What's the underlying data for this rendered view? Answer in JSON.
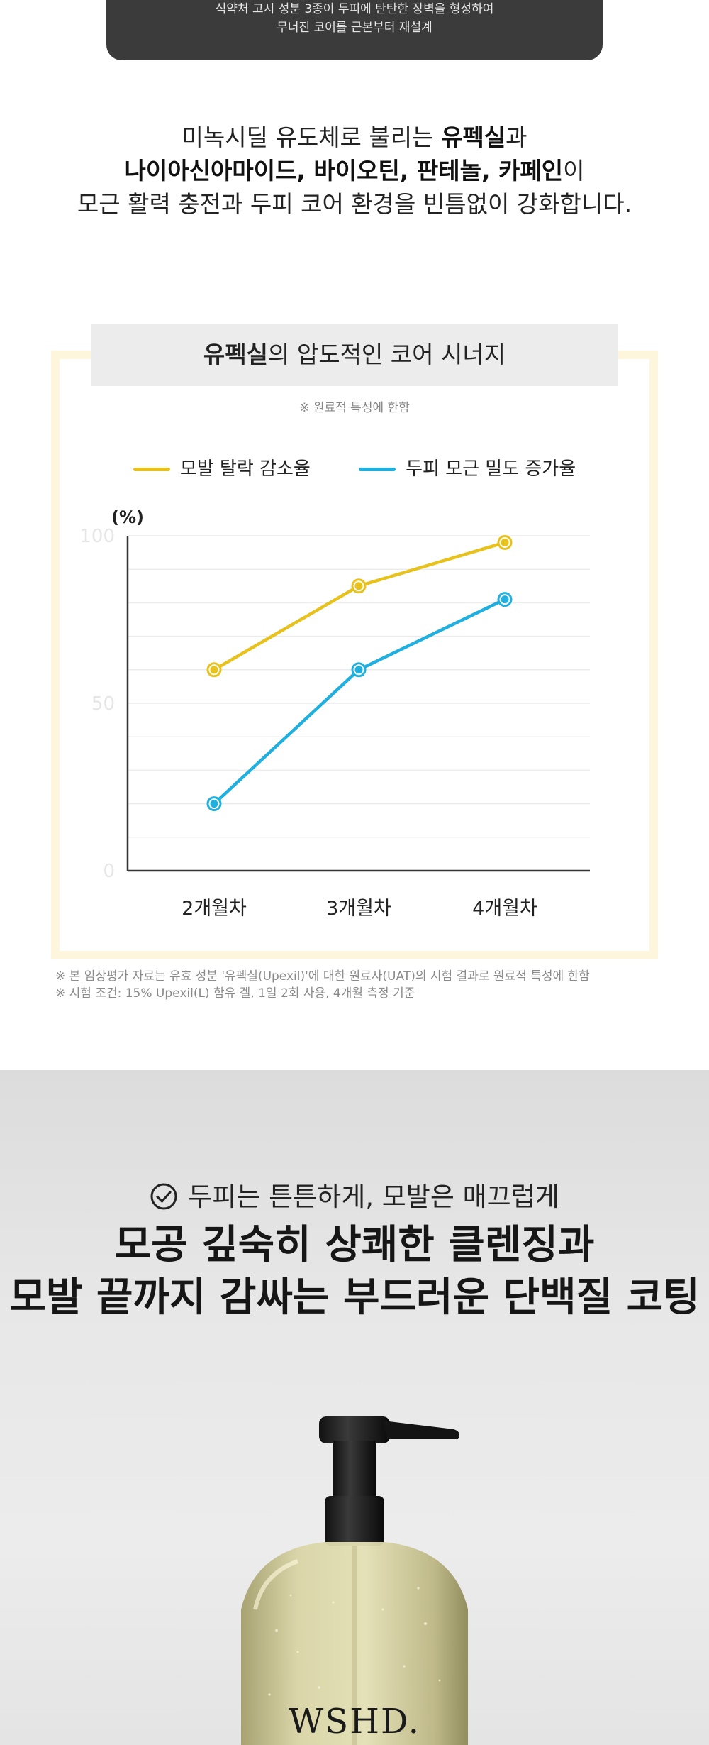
{
  "top_box": {
    "line1": "식약처 고시 성분 3종이 두피에 탄탄한 장벽을 형성하여",
    "line2": "무너진 코어를 근본부터 재설계"
  },
  "intro": {
    "l1_pre": "미녹시딜 유도체로 불리는 ",
    "l1_bold": "유펙실",
    "l1_post": "과",
    "l2_bold_1": "나이아신아마이드, 바이오틴, 판테놀, 카페인",
    "l2_post": "이",
    "l3": "모근 활력 충전과 두피 코어 환경을 빈틈없이 강화합니다."
  },
  "card": {
    "title_bold": "유펙실",
    "title_rest": "의 압도적인 코어 시너지",
    "note": "※ 원료적 특성에 한함"
  },
  "chart_data": {
    "type": "line",
    "ylabel": "(%)",
    "ylim": [
      0,
      100
    ],
    "yticks": [
      "0",
      "50",
      "100"
    ],
    "categories": [
      "2개월차",
      "3개월차",
      "4개월차"
    ],
    "series": [
      {
        "name": "모발 탈락 감소율",
        "color": "#e8c21c",
        "values": [
          60,
          85,
          98
        ]
      },
      {
        "name": "두피 모근 밀도 증가율",
        "color": "#1fb0df",
        "values": [
          20,
          60,
          81
        ]
      }
    ],
    "grid": true,
    "legend": "top"
  },
  "footnotes": {
    "line1": "※ 본 임상평가 자료는 유효 성분 '유펙실(Upexil)'에 대한 원료사(UAT)의 시험 결과로 원료적 특성에 한함",
    "line2": "※ 시험 조건: 15% Upexil(L) 함유 겔, 1일 2회 사용, 4개월 측정 기준"
  },
  "product": {
    "check_text": "두피는 튼튼하게, 모발은 매끄럽게",
    "headline1": "모공 깊숙히 상쾌한 클렌징과",
    "headline2": "모발 끝까지 감싸는 부드러운 단백질 코팅",
    "brand": "WSHD."
  },
  "icons": {
    "check": "check-circle-icon"
  }
}
